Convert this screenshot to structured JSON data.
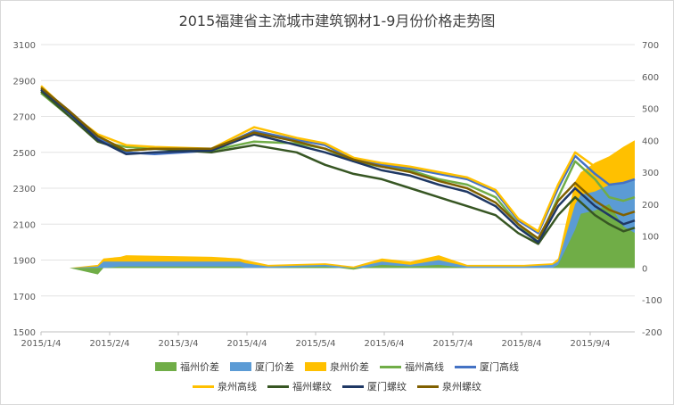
{
  "chart_data": {
    "type": "line",
    "title": "2015福建省主流城市建筑钢材1-9月份价格走势图",
    "xlabel": "",
    "ylabel": "",
    "x_ticks": [
      "2015/1/4",
      "2015/2/4",
      "2015/3/4",
      "2015/4/4",
      "2015/5/4",
      "2015/6/4",
      "2015/7/4",
      "2015/8/4",
      "2015/9/4"
    ],
    "y_left": {
      "min": 1500,
      "max": 3100,
      "ticks": [
        "1500",
        "1700",
        "1900",
        "2100",
        "2300",
        "2500",
        "2700",
        "2900",
        "3100"
      ]
    },
    "y_right": {
      "min": -200,
      "max": 700,
      "ticks": [
        "-200",
        "-100",
        "0",
        "100",
        "200",
        "300",
        "400",
        "500",
        "600",
        "700"
      ]
    },
    "x_day_range": [
      0,
      209
    ],
    "areas": [
      {
        "name": "泉州价差",
        "color": "#ffc000",
        "axis": "right",
        "x": [
          0,
          10,
          20,
          22,
          28,
          30,
          60,
          70,
          72,
          80,
          100,
          110,
          120,
          130,
          140,
          150,
          160,
          170,
          180,
          182,
          188,
          190,
          195,
          200,
          205,
          209
        ],
        "values": [
          0,
          0,
          10,
          30,
          35,
          40,
          35,
          30,
          25,
          10,
          15,
          5,
          30,
          20,
          40,
          10,
          10,
          10,
          15,
          30,
          270,
          300,
          330,
          350,
          380,
          400
        ]
      },
      {
        "name": "厦门价差",
        "color": "#5b9bd5",
        "axis": "right",
        "x": [
          0,
          10,
          20,
          22,
          28,
          30,
          60,
          70,
          72,
          80,
          100,
          110,
          120,
          130,
          140,
          150,
          160,
          170,
          180,
          182,
          188,
          190,
          195,
          200,
          205,
          209
        ],
        "values": [
          0,
          0,
          5,
          20,
          20,
          20,
          20,
          20,
          15,
          5,
          10,
          0,
          20,
          10,
          25,
          5,
          5,
          5,
          10,
          20,
          200,
          230,
          240,
          260,
          270,
          280
        ]
      },
      {
        "name": "福州价差",
        "color": "#70ad47",
        "axis": "right",
        "x": [
          0,
          10,
          20,
          22,
          28,
          30,
          60,
          70,
          72,
          80,
          100,
          110,
          120,
          130,
          140,
          150,
          160,
          170,
          180,
          182,
          188,
          190,
          195,
          200,
          205,
          209
        ],
        "values": [
          0,
          0,
          -20,
          0,
          5,
          5,
          5,
          5,
          0,
          0,
          5,
          -5,
          10,
          5,
          10,
          0,
          0,
          0,
          0,
          10,
          120,
          170,
          180,
          200,
          130,
          110
        ]
      }
    ],
    "series": [
      {
        "name": "福州高线",
        "color": "#70ad47",
        "axis": "left",
        "x": [
          0,
          10,
          20,
          30,
          40,
          60,
          75,
          90,
          100,
          110,
          120,
          130,
          140,
          150,
          160,
          168,
          175,
          182,
          188,
          195,
          200,
          205,
          209
        ],
        "values": [
          2830,
          2700,
          2560,
          2530,
          2520,
          2510,
          2560,
          2550,
          2520,
          2450,
          2420,
          2400,
          2350,
          2320,
          2250,
          2100,
          2000,
          2250,
          2450,
          2350,
          2250,
          2230,
          2250
        ]
      },
      {
        "name": "厦门高线",
        "color": "#4472c4",
        "axis": "left",
        "x": [
          0,
          10,
          20,
          30,
          40,
          60,
          75,
          90,
          100,
          110,
          120,
          130,
          140,
          150,
          160,
          168,
          175,
          182,
          188,
          195,
          200,
          205,
          209
        ],
        "values": [
          2850,
          2710,
          2580,
          2500,
          2490,
          2510,
          2620,
          2570,
          2540,
          2460,
          2430,
          2410,
          2380,
          2350,
          2280,
          2120,
          2050,
          2300,
          2480,
          2380,
          2320,
          2330,
          2350
        ]
      },
      {
        "name": "泉州高线",
        "color": "#ffc000",
        "axis": "left",
        "x": [
          0,
          10,
          20,
          30,
          40,
          60,
          75,
          90,
          100,
          110,
          120,
          130,
          140,
          150,
          160,
          168,
          175,
          182,
          188,
          195,
          200,
          205,
          209
        ],
        "values": [
          2870,
          2720,
          2600,
          2540,
          2530,
          2520,
          2640,
          2580,
          2550,
          2470,
          2440,
          2420,
          2390,
          2360,
          2290,
          2130,
          2060,
          2320,
          2500,
          2420,
          2360,
          2370,
          2380
        ]
      },
      {
        "name": "福州螺纹",
        "color": "#375623",
        "axis": "left",
        "x": [
          0,
          10,
          20,
          30,
          40,
          60,
          75,
          90,
          100,
          110,
          120,
          130,
          140,
          150,
          160,
          168,
          175,
          182,
          188,
          195,
          200,
          205,
          209
        ],
        "values": [
          2840,
          2700,
          2560,
          2510,
          2520,
          2500,
          2540,
          2500,
          2430,
          2380,
          2350,
          2300,
          2250,
          2200,
          2150,
          2050,
          1990,
          2150,
          2250,
          2150,
          2100,
          2060,
          2080
        ]
      },
      {
        "name": "厦门螺纹",
        "color": "#1f3864",
        "axis": "left",
        "x": [
          0,
          10,
          20,
          30,
          40,
          60,
          75,
          90,
          100,
          110,
          120,
          130,
          140,
          150,
          160,
          168,
          175,
          182,
          188,
          195,
          200,
          205,
          209
        ],
        "values": [
          2850,
          2720,
          2570,
          2490,
          2500,
          2510,
          2600,
          2540,
          2500,
          2450,
          2400,
          2370,
          2320,
          2280,
          2200,
          2080,
          2000,
          2200,
          2300,
          2200,
          2150,
          2100,
          2120
        ]
      },
      {
        "name": "泉州螺纹",
        "color": "#806000",
        "axis": "left",
        "x": [
          0,
          10,
          20,
          30,
          40,
          60,
          75,
          90,
          100,
          110,
          120,
          130,
          140,
          150,
          160,
          168,
          175,
          182,
          188,
          195,
          200,
          205,
          209
        ],
        "values": [
          2860,
          2730,
          2590,
          2510,
          2520,
          2520,
          2610,
          2560,
          2520,
          2460,
          2420,
          2390,
          2340,
          2300,
          2220,
          2100,
          2020,
          2230,
          2330,
          2230,
          2180,
          2150,
          2170
        ]
      }
    ],
    "legend": {
      "rows": [
        [
          {
            "label": "福州价差",
            "color": "#70ad47",
            "kind": "box"
          },
          {
            "label": "厦门价差",
            "color": "#5b9bd5",
            "kind": "box"
          },
          {
            "label": "泉州价差",
            "color": "#ffc000",
            "kind": "box"
          },
          {
            "label": "福州高线",
            "color": "#70ad47",
            "kind": "line"
          },
          {
            "label": "厦门高线",
            "color": "#4472c4",
            "kind": "line"
          }
        ],
        [
          {
            "label": "泉州高线",
            "color": "#ffc000",
            "kind": "line"
          },
          {
            "label": "福州螺纹",
            "color": "#375623",
            "kind": "line"
          },
          {
            "label": "厦门螺纹",
            "color": "#1f3864",
            "kind": "line"
          },
          {
            "label": "泉州螺纹",
            "color": "#806000",
            "kind": "line"
          }
        ]
      ],
      "placement": "bottom"
    },
    "grid": true
  }
}
